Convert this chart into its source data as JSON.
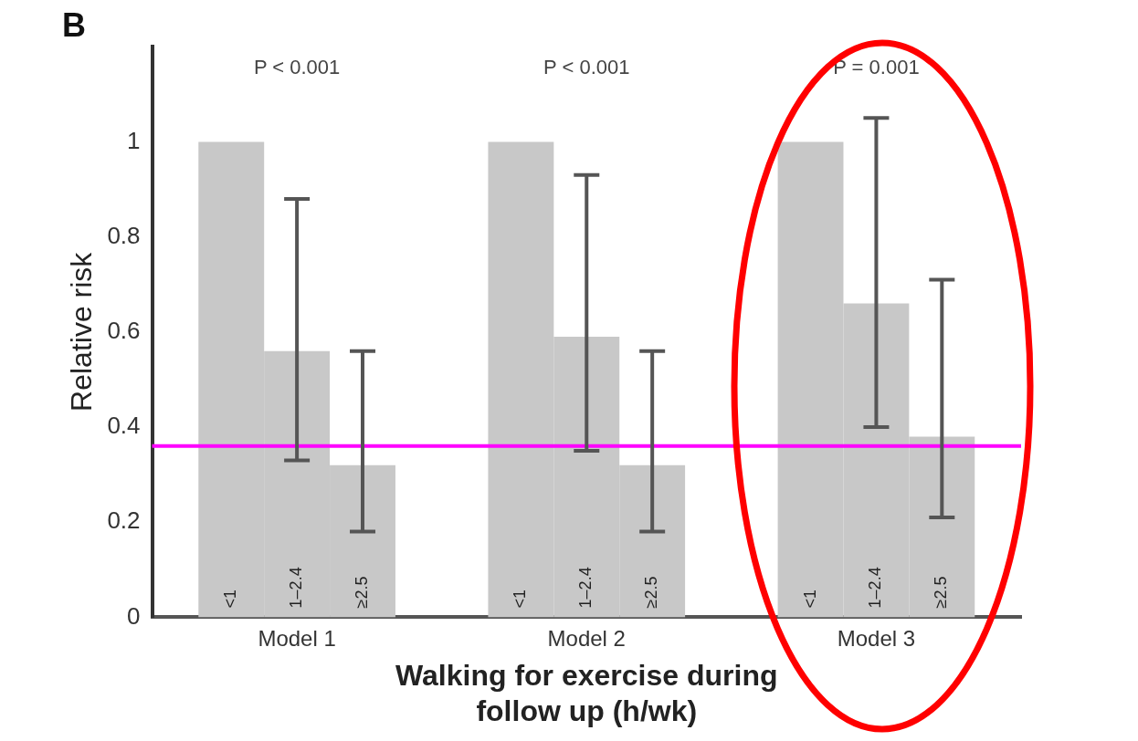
{
  "chart_data": {
    "type": "bar",
    "title": "B",
    "xlabel": "Walking for exercise during follow up (h/wk)",
    "ylabel": "Relative risk",
    "categories": [
      "Model 1",
      "Model 2",
      "Model 3"
    ],
    "series": [
      {
        "name": "<1",
        "color": "#c8c8c8",
        "values": [
          1,
          1,
          1
        ]
      },
      {
        "name": "1–2.4",
        "color": "#c8c8c8",
        "values": [
          0.56,
          0.59,
          0.66
        ],
        "errors": [
          [
            0.33,
            0.88
          ],
          [
            0.35,
            0.93
          ],
          [
            0.4,
            1.05
          ]
        ]
      },
      {
        "name": "≥2.5",
        "color": "#c8c8c8",
        "values": [
          0.32,
          0.32,
          0.38
        ],
        "errors": [
          [
            0.18,
            0.56
          ],
          [
            0.18,
            0.56
          ],
          [
            0.21,
            0.71
          ]
        ]
      }
    ],
    "ylim": [
      0,
      1.2
    ],
    "yticks": [
      0,
      0.2,
      0.4,
      0.6,
      0.8,
      1
    ],
    "grid": false,
    "legend": false,
    "ref_lines": [
      {
        "axis": "y",
        "value": 0.36,
        "color": "#ff00ff"
      }
    ],
    "annotations": [
      "P < 0.001",
      "P < 0.001",
      "P = 0.001"
    ]
  }
}
